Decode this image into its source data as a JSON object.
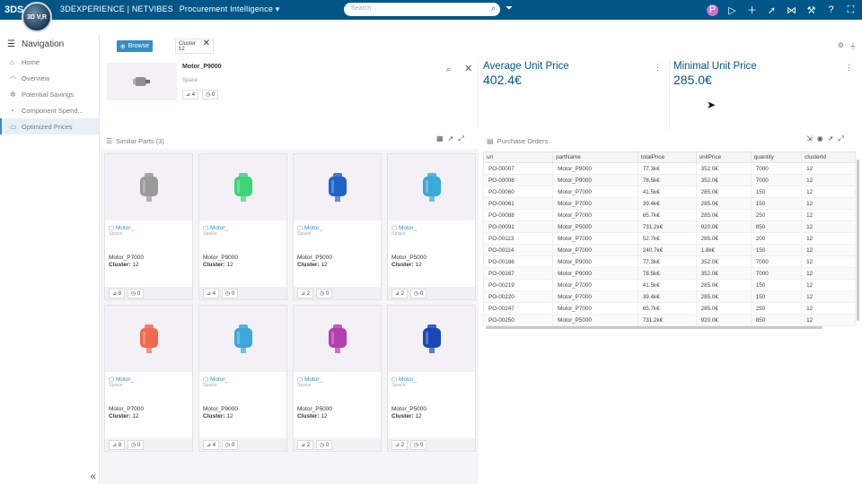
{
  "topbar": {
    "ds_logo": "3DS",
    "compass_label": "3D V,R",
    "brand": "3DEXPERIENCE | NETVIBES",
    "app": "Procurement Intelligence ▾",
    "search_placeholder": "Search",
    "avatar_initial": "P"
  },
  "nav": {
    "title": "Navigation",
    "items": [
      {
        "label": "Home",
        "icon": "home-icon",
        "glyph": "⌂"
      },
      {
        "label": "Overview",
        "icon": "overview-icon",
        "glyph": "◠"
      },
      {
        "label": "Potential Savings",
        "icon": "savings-icon",
        "glyph": "✲"
      },
      {
        "label": "Component Spend...",
        "icon": "spend-icon",
        "glyph": "◔"
      },
      {
        "label": "Optimized Prices",
        "icon": "prices-icon",
        "glyph": "▭"
      }
    ],
    "active_index": 4
  },
  "toolbar": {
    "browse_label": "Browse",
    "cluster_label": "Cluster",
    "cluster_value": "12"
  },
  "header_card": {
    "title": "Motor_P9000",
    "space": "Space",
    "count_a": "4",
    "count_b": "0"
  },
  "kpis": {
    "avg_label": "Average Unit Price",
    "avg_value": "402.4€",
    "min_label": "Minimal Unit Price",
    "min_value": "285.0€"
  },
  "similar": {
    "title": "Similar Parts (3)",
    "cards": [
      {
        "link": "Motor_",
        "space": "Space",
        "name": "Motor_P7000",
        "cluster_label": "Cluster:",
        "cluster": "12",
        "a": "8",
        "b": "0",
        "color": "#9a9a9a"
      },
      {
        "link": "Motor_",
        "space": "Space",
        "name": "Motor_P9000",
        "cluster_label": "Cluster:",
        "cluster": "12",
        "a": "4",
        "b": "0",
        "color": "#3fd37a"
      },
      {
        "link": "Motor_",
        "space": "Space",
        "name": "Motor_P5000",
        "cluster_label": "Cluster:",
        "cluster": "12",
        "a": "2",
        "b": "0",
        "color": "#1f63c9"
      },
      {
        "link": "Motor_",
        "space": "Space",
        "name": "Motor_P5000",
        "cluster_label": "Cluster:",
        "cluster": "12",
        "a": "2",
        "b": "0",
        "color": "#3aa8d8"
      },
      {
        "link": "Motor_",
        "space": "Space",
        "name": "Motor_P7000",
        "cluster_label": "Cluster:",
        "cluster": "12",
        "a": "8",
        "b": "0",
        "color": "#f06a4f"
      },
      {
        "link": "Motor_",
        "space": "Space",
        "name": "Motor_P9000",
        "cluster_label": "Cluster:",
        "cluster": "12",
        "a": "4",
        "b": "0",
        "color": "#3aa8d8"
      },
      {
        "link": "Motor_",
        "space": "Space",
        "name": "Motor_P5000",
        "cluster_label": "Cluster:",
        "cluster": "12",
        "a": "2",
        "b": "0",
        "color": "#b33fb0"
      },
      {
        "link": "Motor_",
        "space": "Space",
        "name": "Motor_P5000",
        "cluster_label": "Cluster:",
        "cluster": "12",
        "a": "2",
        "b": "0",
        "color": "#1848b8"
      }
    ]
  },
  "orders": {
    "title": "Purchase Orders",
    "columns": [
      "uri",
      "partName",
      "totalPrice",
      "unitPrice",
      "quantity",
      "clusterId"
    ],
    "rows": [
      [
        "PO-00007",
        "Motor_P9000",
        "77.3k€",
        "352.0€",
        "7000",
        "12"
      ],
      [
        "PO-00008",
        "Motor_P9000",
        "78.5k€",
        "352.0€",
        "7000",
        "12"
      ],
      [
        "PO-00060",
        "Motor_P7000",
        "41.5k€",
        "285.0€",
        "150",
        "12"
      ],
      [
        "PO-00061",
        "Motor_P7000",
        "39.4k€",
        "285.0€",
        "150",
        "12"
      ],
      [
        "PO-00088",
        "Motor_P7000",
        "65.7k€",
        "285.0€",
        "250",
        "12"
      ],
      [
        "PO-00091",
        "Motor_P5000",
        "731.2k€",
        "920.0€",
        "850",
        "12"
      ],
      [
        "PO-00113",
        "Motor_P7000",
        "52.7k€",
        "285.0€",
        "200",
        "12"
      ],
      [
        "PO-00114",
        "Motor_P7000",
        "240.7k€",
        "1.8k€",
        "150",
        "12"
      ],
      [
        "PO-00166",
        "Motor_P9000",
        "77.3k€",
        "352.0€",
        "7000",
        "12"
      ],
      [
        "PO-00167",
        "Motor_P9000",
        "78.5k€",
        "352.0€",
        "7000",
        "12"
      ],
      [
        "PO-00219",
        "Motor_P7000",
        "41.5k€",
        "285.0€",
        "150",
        "12"
      ],
      [
        "PO-00220",
        "Motor_P7000",
        "39.4k€",
        "285.0€",
        "150",
        "12"
      ],
      [
        "PO-00247",
        "Motor_P7000",
        "65.7k€",
        "285.0€",
        "250",
        "12"
      ],
      [
        "PO-00250",
        "Motor_P5000",
        "731.2k€",
        "920.0€",
        "850",
        "12"
      ]
    ]
  }
}
